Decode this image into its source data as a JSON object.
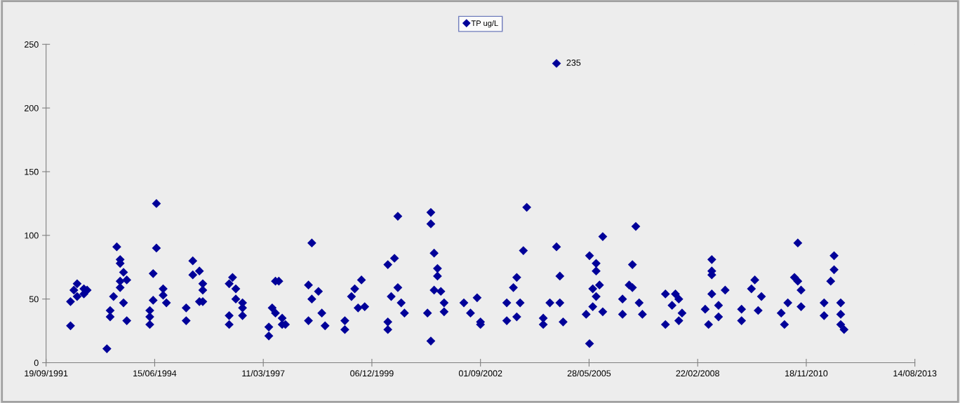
{
  "chart_data": {
    "type": "scatter",
    "series": [
      {
        "name": "TP ug/L",
        "color": "#000099",
        "x": [
          "1992-05",
          "1992-05",
          "1992-07",
          "1992-06",
          "1992-07",
          "1992-09",
          "1992-10",
          "1992-09",
          "1993-04",
          "1993-05",
          "1993-05",
          "1993-07",
          "1993-08",
          "1993-08",
          "1993-08",
          "1993-08",
          "1993-09",
          "1993-09",
          "1993-10",
          "1993-10",
          "1993-06",
          "1994-07",
          "1994-07",
          "1994-06",
          "1994-06",
          "1994-05",
          "1994-05",
          "1994-05",
          "1994-09",
          "1994-09",
          "1994-10",
          "1995-04",
          "1995-04",
          "1995-06",
          "1995-06",
          "1995-08",
          "1995-08",
          "1995-09",
          "1995-09",
          "1995-09",
          "1996-05",
          "1996-05",
          "1996-05",
          "1996-06",
          "1996-07",
          "1996-07",
          "1996-09",
          "1996-09",
          "1996-09",
          "1997-05",
          "1997-05",
          "1997-06",
          "1997-07",
          "1997-07",
          "1997-08",
          "1997-09",
          "1997-10",
          "1997-09",
          "1998-06",
          "1998-06",
          "1998-05",
          "1998-05",
          "1998-08",
          "1998-09",
          "1998-10",
          "1999-04",
          "1999-04",
          "1999-06",
          "1999-07",
          "1999-09",
          "1999-08",
          "1999-10",
          "2000-05",
          "2000-05",
          "2000-05",
          "2000-07",
          "2000-08",
          "2000-08",
          "2000-06",
          "2000-09",
          "2000-10",
          "2001-06",
          "2001-06",
          "2001-06",
          "2001-07",
          "2001-07",
          "2001-08",
          "2001-08",
          "2001-05",
          "2001-09",
          "2001-10",
          "2001-10",
          "2002-04",
          "2002-06",
          "2002-08",
          "2002-09",
          "2002-09",
          "2003-05",
          "2003-05",
          "2003-07",
          "2003-08",
          "2003-10",
          "2003-11",
          "2003-09",
          "2003-08",
          "2004-04",
          "2004-04",
          "2004-06",
          "2004-08",
          "2004-08",
          "2004-09",
          "2004-09",
          "2004-10",
          "2005-06",
          "2005-05",
          "2005-06",
          "2005-08",
          "2005-08",
          "2005-10",
          "2005-07",
          "2005-07",
          "2005-09",
          "2005-10",
          "2005-08",
          "2006-04",
          "2006-04",
          "2006-07",
          "2006-08",
          "2006-06",
          "2006-07",
          "2006-09",
          "2006-10",
          "2007-05",
          "2007-05",
          "2007-08",
          "2007-07",
          "2007-10",
          "2007-09",
          "2007-09",
          "2008-06",
          "2008-07",
          "2008-07",
          "2008-07",
          "2008-05",
          "2008-07",
          "2008-11",
          "2008-09",
          "2008-09",
          "2009-04",
          "2009-04",
          "2009-08",
          "2009-07",
          "2009-10",
          "2009-09",
          "2010-05",
          "2010-04",
          "2010-06",
          "2010-09",
          "2010-08",
          "2010-09",
          "2010-10",
          "2010-10",
          "2011-08",
          "2011-08",
          "2011-07",
          "2011-05",
          "2011-05",
          "2011-10",
          "2011-10",
          "2011-10",
          "2011-11"
        ],
        "values": [
          29,
          48,
          62,
          57,
          52,
          58,
          57,
          54,
          11,
          41,
          36,
          91,
          81,
          78,
          64,
          59,
          71,
          47,
          65,
          33,
          52,
          125,
          90,
          70,
          49,
          30,
          36,
          41,
          58,
          53,
          47,
          43,
          33,
          80,
          69,
          72,
          48,
          62,
          57,
          48,
          62,
          30,
          37,
          67,
          58,
          50,
          43,
          47,
          37,
          21,
          28,
          43,
          64,
          39,
          64,
          35,
          30,
          30,
          94,
          50,
          61,
          33,
          56,
          39,
          29,
          26,
          33,
          52,
          58,
          65,
          43,
          44,
          26,
          32,
          77,
          82,
          115,
          59,
          52,
          47,
          39,
          17,
          118,
          109,
          86,
          57,
          74,
          68,
          39,
          56,
          47,
          40,
          47,
          39,
          51,
          32,
          30,
          47,
          33,
          59,
          67,
          88,
          122,
          47,
          36,
          30,
          35,
          47,
          91,
          235,
          68,
          47,
          32,
          15,
          38,
          84,
          78,
          72,
          99,
          44,
          58,
          61,
          40,
          52,
          38,
          50,
          77,
          107,
          61,
          59,
          47,
          38,
          30,
          54,
          54,
          45,
          39,
          33,
          50,
          30,
          81,
          72,
          69,
          42,
          54,
          57,
          36,
          45,
          33,
          42,
          65,
          58,
          52,
          41,
          30,
          39,
          47,
          94,
          67,
          64,
          57,
          44,
          84,
          73,
          64,
          47,
          37,
          47,
          38,
          30,
          26
        ]
      }
    ],
    "marker": "diamond",
    "annotations": [
      {
        "text": "235",
        "x": "2004-08",
        "y": 235
      }
    ],
    "xlim": [
      "1991-09-19",
      "2013-08-14"
    ],
    "xticks": [
      {
        "value": "1991-09-19",
        "label": "19/09/1991"
      },
      {
        "value": "1994-06-15",
        "label": "15/06/1994"
      },
      {
        "value": "1997-03-11",
        "label": "11/03/1997"
      },
      {
        "value": "1999-12-06",
        "label": "06/12/1999"
      },
      {
        "value": "2002-09-01",
        "label": "01/09/2002"
      },
      {
        "value": "2005-05-28",
        "label": "28/05/2005"
      },
      {
        "value": "2008-02-22",
        "label": "22/02/2008"
      },
      {
        "value": "2010-11-18",
        "label": "18/11/2010"
      },
      {
        "value": "2013-08-14",
        "label": "14/08/2013"
      }
    ],
    "ylim": [
      0,
      250
    ],
    "yticks": [
      0,
      50,
      100,
      150,
      200,
      250
    ],
    "grid": false,
    "legend": "top"
  }
}
